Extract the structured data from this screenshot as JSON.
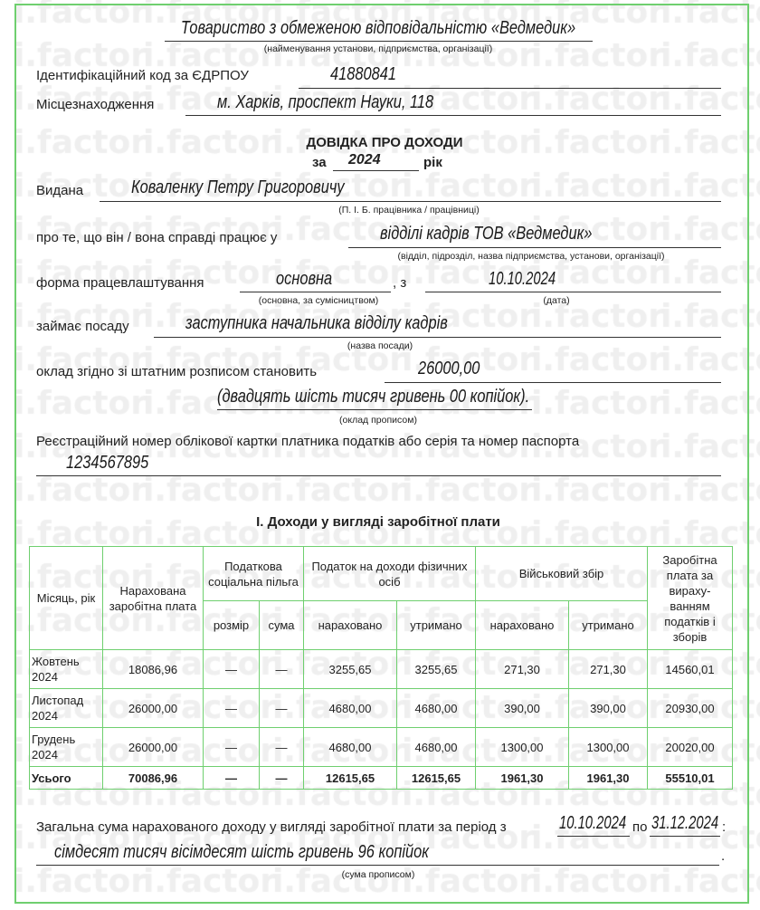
{
  "watermark": "i.factor",
  "org": {
    "name": "Товариство з обмеженою відповідальністю «Ведмедик»",
    "caption": "(найменування установи, підприємства, організації)"
  },
  "edrpou": {
    "label": "Ідентифікаційний код за ЄДРПОУ",
    "value": "41880841"
  },
  "location": {
    "label": "Місцезнаходження",
    "value": "м. Харків, проспект Науки, 118"
  },
  "doc": {
    "title": "ДОВІДКА ПРО ДОХОДИ",
    "year_prefix": "за",
    "year": "2024",
    "year_suffix": "рік"
  },
  "issued": {
    "label": "Видана",
    "value": "Коваленку Петру Григоровичу",
    "caption": "(П. І. Б. працівника / працівниці)"
  },
  "works": {
    "label": "про те, що він / вона справді працює у",
    "value": "відділі кадрів ТОВ «Ведмедик»",
    "caption": "(відділ, підрозділ, назва підприємства, установи, організації)"
  },
  "employment": {
    "label": "форма працевлаштування",
    "value": "основна",
    "sep": ", з",
    "date": "10.10.2024",
    "caption": "(основна, за сумісництвом)",
    "date_caption": "(дата)"
  },
  "position": {
    "label": "займає посаду",
    "value": "заступника начальника відділу кадрів",
    "caption": "(назва посади)"
  },
  "salary": {
    "label": "оклад згідно зі штатним розписом становить",
    "value": "26000,00",
    "words": "(двадцять шість тисяч гривень 00 копійок).",
    "caption": "(оклад прописом)"
  },
  "tax_id": {
    "label": "Реєстраційний номер облікової картки платника податків або серія та номер паспорта",
    "value": "1234567895"
  },
  "section": "І. Доходи у вигляді заробітної плати",
  "table": {
    "headers": {
      "month": "Місяць, рік",
      "accrued": "Нарахована заробітна плата",
      "benefit": "Податкова соціальна пільга",
      "benefit_size": "розмір",
      "benefit_sum": "сума",
      "pit": "Податок на доходи фізичних осіб",
      "pit_acc": "нараховано",
      "pit_ret": "утримано",
      "mil": "Військовий збір",
      "mil_acc": "нараховано",
      "mil_ret": "утримано",
      "net": "Заробітна плата за вираху-ванням податків і зборів"
    },
    "rows": [
      [
        "Жовтень 2024",
        "18086,96",
        "—",
        "—",
        "3255,65",
        "3255,65",
        "271,30",
        "271,30",
        "14560,01"
      ],
      [
        "Листопад 2024",
        "26000,00",
        "—",
        "—",
        "4680,00",
        "4680,00",
        "390,00",
        "390,00",
        "20930,00"
      ],
      [
        "Грудень 2024",
        "26000,00",
        "—",
        "—",
        "4680,00",
        "4680,00",
        "1300,00",
        "1300,00",
        "20020,00"
      ]
    ],
    "total": [
      "Усього",
      "70086,96",
      "—",
      "—",
      "12615,65",
      "12615,65",
      "1961,30",
      "1961,30",
      "55510,01"
    ]
  },
  "summary": {
    "label": "Загальна сума нарахованого доходу у вигляді заробітної плати за період з",
    "from": "10.10.2024",
    "to_label": "по",
    "to": "31.12.2024",
    "colon": ":",
    "words": "сімдесят тисяч вісімдесят шість гривень 96 копійок",
    "dot": ".",
    "caption": "(сума прописом)"
  }
}
